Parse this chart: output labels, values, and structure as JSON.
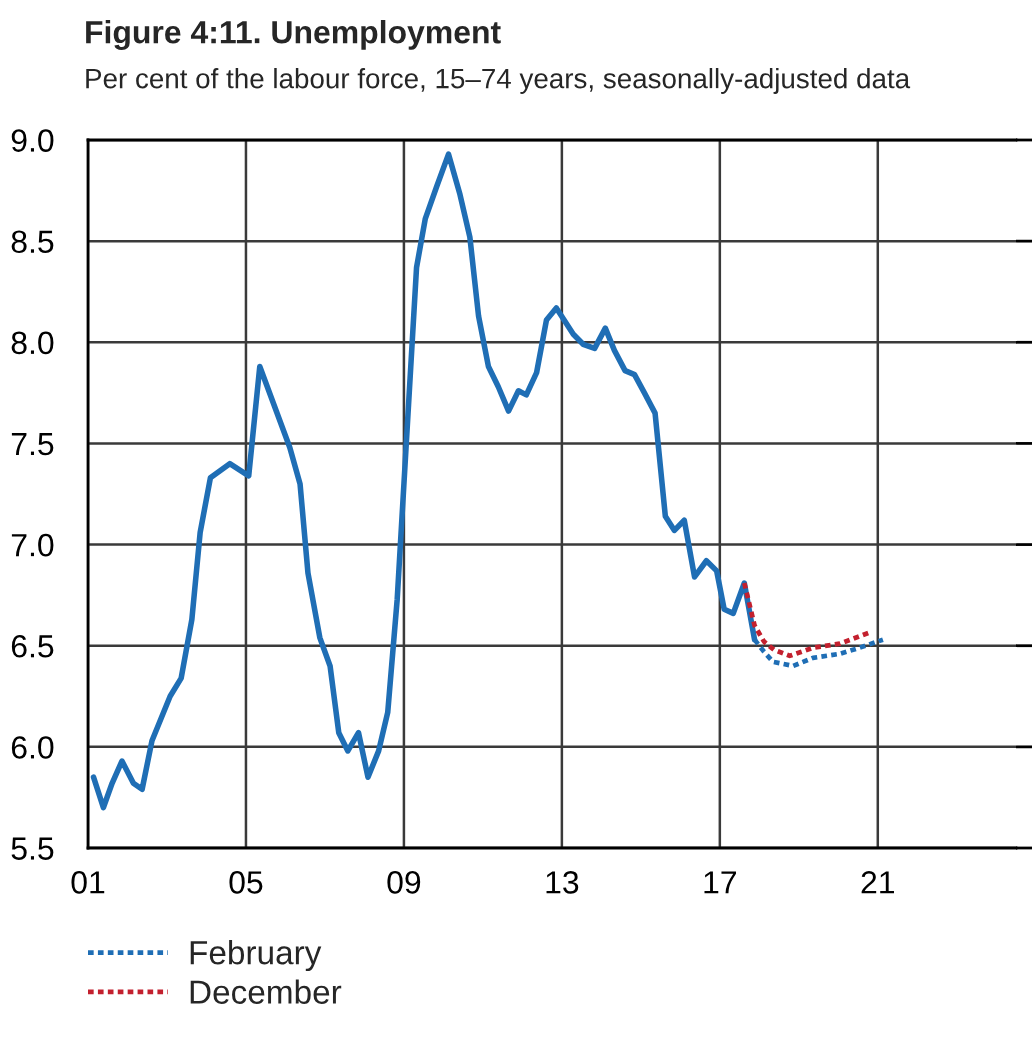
{
  "chart_data": {
    "type": "line",
    "title": "Figure 4:11. Unemployment",
    "subtitle": "Per cent of the labour force, 15–74 years, seasonally-adjusted data",
    "xlim": [
      2001,
      2024.5
    ],
    "xticks": [
      {
        "value": 2001,
        "label": "01"
      },
      {
        "value": 2005,
        "label": "05"
      },
      {
        "value": 2009,
        "label": "09"
      },
      {
        "value": 2013,
        "label": "13"
      },
      {
        "value": 2017,
        "label": "17"
      },
      {
        "value": 2021,
        "label": "21"
      }
    ],
    "ylim": [
      5.5,
      9.0
    ],
    "yticks": [
      5.5,
      {
        "value": 6,
        "label": "6.0"
      },
      6.5,
      {
        "value": 7,
        "label": "7.0"
      },
      7.5,
      {
        "value": 8,
        "label": "8.0"
      },
      8.5,
      {
        "value": 9,
        "label": "9.0"
      }
    ],
    "grid": true,
    "legend": "bottom",
    "series": [
      {
        "color": "#1f6eb5",
        "line_style": "solid",
        "x": [
          2001.14,
          2001.39,
          2001.61,
          2001.86,
          2002.15,
          2002.37,
          2002.62,
          2003.08,
          2003.36,
          2003.63,
          2003.84,
          2004.1,
          2004.59,
          2005.07,
          2005.35,
          2006.11,
          2006.37,
          2006.57,
          2006.87,
          2007.13,
          2007.35,
          2007.58,
          2007.85,
          2008.09,
          2008.36,
          2008.59,
          2008.83,
          2009.32,
          2009.54,
          2009.83,
          2010.13,
          2010.42,
          2010.67,
          2010.89,
          2011.14,
          2011.39,
          2011.65,
          2011.9,
          2012.1,
          2012.36,
          2012.61,
          2012.86,
          2013.29,
          2013.54,
          2013.83,
          2014.1,
          2014.33,
          2014.6,
          2014.84,
          2015.09,
          2015.36,
          2015.62,
          2015.85,
          2016.1,
          2016.36,
          2016.66,
          2016.92,
          2017.11,
          2017.34,
          2017.62,
          2017.88
        ],
        "values": [
          5.85,
          5.7,
          5.82,
          5.93,
          5.82,
          5.79,
          6.03,
          6.25,
          6.34,
          6.63,
          7.06,
          7.33,
          7.4,
          7.34,
          7.88,
          7.48,
          7.3,
          6.86,
          6.54,
          6.4,
          6.07,
          5.98,
          6.07,
          5.85,
          5.98,
          6.17,
          6.73,
          8.37,
          8.61,
          8.77,
          8.93,
          8.73,
          8.52,
          8.13,
          7.88,
          7.78,
          7.66,
          7.76,
          7.74,
          7.85,
          8.11,
          8.17,
          8.04,
          7.99,
          7.97,
          8.07,
          7.96,
          7.86,
          7.84,
          7.75,
          7.65,
          7.14,
          7.07,
          7.12,
          6.84,
          6.92,
          6.87,
          6.68,
          6.66,
          6.81,
          6.53
        ]
      },
      {
        "name": "February",
        "color": "#1f6eb5",
        "line_style": "dotted",
        "x": [
          2017.88,
          2018.12,
          2018.35,
          2018.86,
          2019.36,
          2020.04,
          2020.54,
          2021.13
        ],
        "values": [
          6.53,
          6.47,
          6.42,
          6.4,
          6.44,
          6.46,
          6.49,
          6.53
        ]
      },
      {
        "name": "December",
        "color": "#c3202e",
        "line_style": "dotted",
        "x": [
          2017.62,
          2017.88,
          2018.12,
          2018.37,
          2018.77,
          2019.36,
          2020.04,
          2020.85
        ],
        "values": [
          6.81,
          6.6,
          6.52,
          6.48,
          6.45,
          6.49,
          6.51,
          6.57
        ]
      }
    ]
  }
}
